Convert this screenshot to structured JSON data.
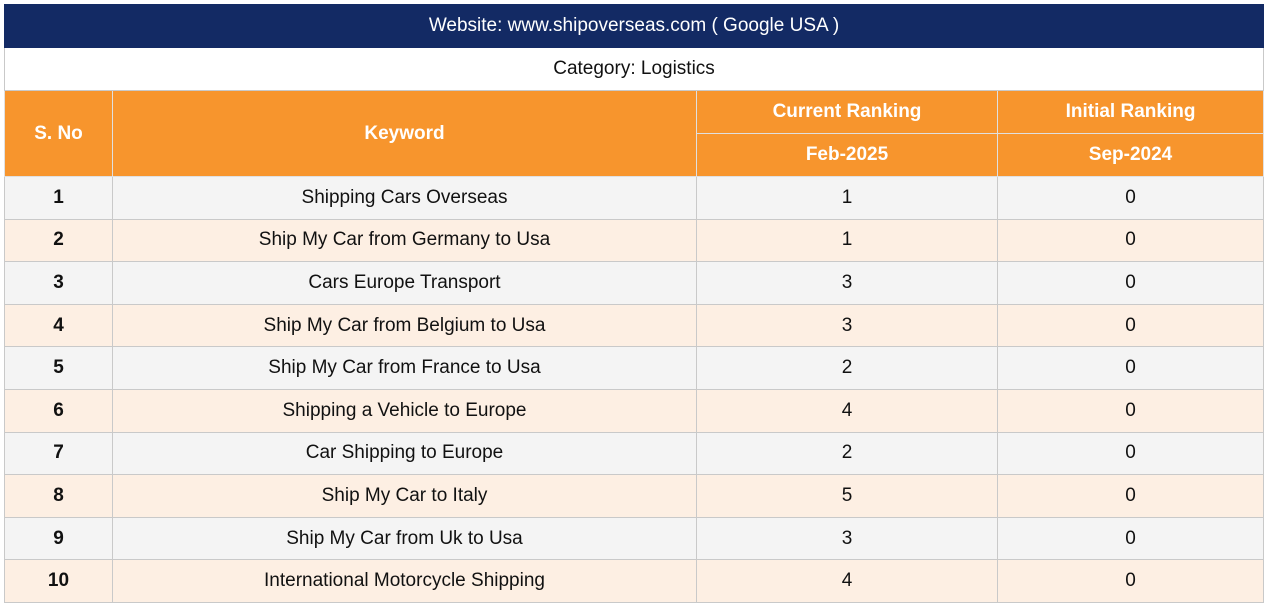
{
  "title": "Website: www.shipoverseas.com ( Google USA )",
  "category": "Category: Logistics",
  "headers": {
    "sno": "S. No",
    "keyword": "Keyword",
    "current": "Current Ranking",
    "current_date": "Feb-2025",
    "initial": "Initial Ranking",
    "initial_date": "Sep-2024"
  },
  "rows": [
    {
      "sno": "1",
      "keyword": "Shipping Cars Overseas",
      "current": "1",
      "initial": "0"
    },
    {
      "sno": "2",
      "keyword": "Ship My Car from Germany to Usa",
      "current": "1",
      "initial": "0"
    },
    {
      "sno": "3",
      "keyword": "Cars Europe Transport",
      "current": "3",
      "initial": "0"
    },
    {
      "sno": "4",
      "keyword": "Ship My Car from Belgium to Usa",
      "current": "3",
      "initial": "0"
    },
    {
      "sno": "5",
      "keyword": "Ship My Car from France to Usa",
      "current": "2",
      "initial": "0"
    },
    {
      "sno": "6",
      "keyword": "Shipping a Vehicle to Europe",
      "current": "4",
      "initial": "0"
    },
    {
      "sno": "7",
      "keyword": "Car Shipping to Europe",
      "current": "2",
      "initial": "0"
    },
    {
      "sno": "8",
      "keyword": "Ship My Car to Italy",
      "current": "5",
      "initial": "0"
    },
    {
      "sno": "9",
      "keyword": "Ship My Car from Uk to Usa",
      "current": "3",
      "initial": "0"
    },
    {
      "sno": "10",
      "keyword": "International Motorcycle Shipping",
      "current": "4",
      "initial": "0"
    }
  ],
  "colors": {
    "title_bg": "#132a64",
    "header_bg": "#f7952d",
    "row_odd": "#f4f4f4",
    "row_even": "#fdefe3"
  }
}
